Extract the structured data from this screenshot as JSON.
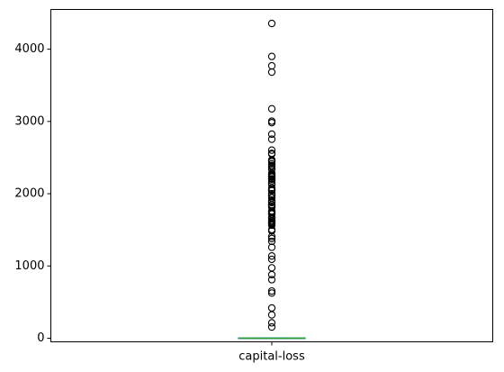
{
  "chart_data": {
    "type": "box",
    "title": "",
    "xlabel": "",
    "ylabel": "",
    "categories": [
      "capital-loss"
    ],
    "ylim": [
      -50,
      4550
    ],
    "yticks": [
      0,
      1000,
      2000,
      3000,
      4000
    ],
    "ytick_labels": [
      "0",
      "1000",
      "2000",
      "3000",
      "4000"
    ],
    "series": [
      {
        "category": "capital-loss",
        "whisker_low": 0,
        "q1": 0,
        "median": 0,
        "q3": 0,
        "whisker_high": 0,
        "outliers": [
          155,
          213,
          323,
          419,
          625,
          653,
          810,
          880,
          974,
          1092,
          1138,
          1258,
          1340,
          1380,
          1408,
          1485,
          1504,
          1564,
          1579,
          1594,
          1602,
          1617,
          1628,
          1651,
          1668,
          1672,
          1719,
          1721,
          1740,
          1755,
          1762,
          1816,
          1825,
          1844,
          1848,
          1876,
          1887,
          1902,
          1944,
          1974,
          1977,
          1980,
          2001,
          2042,
          2051,
          2057,
          2080,
          2129,
          2149,
          2179,
          2201,
          2205,
          2206,
          2231,
          2238,
          2246,
          2258,
          2267,
          2282,
          2339,
          2352,
          2377,
          2392,
          2415,
          2444,
          2457,
          2467,
          2547,
          2559,
          2603,
          2754,
          2824,
          2983,
          3004,
          3175,
          3683,
          3770,
          3900,
          4356
        ]
      }
    ],
    "grid": false,
    "legend": "none",
    "colors": {
      "median": "#2ca02c",
      "box": "#1f77b4",
      "outlier_edge": "#000000",
      "axes": "#000000"
    }
  }
}
